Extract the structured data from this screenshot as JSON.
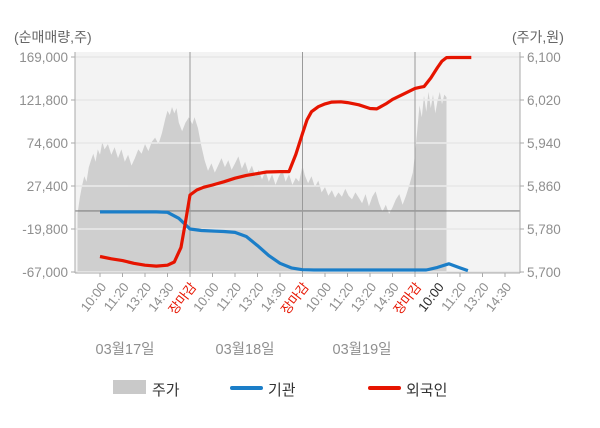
{
  "axis_titles": {
    "left": "(순매매량,주)",
    "right": "(주가,원)"
  },
  "legend": {
    "items": [
      {
        "label": "주가",
        "type": "area",
        "color": "#c9c9c9"
      },
      {
        "label": "기관",
        "type": "line",
        "color": "#1b7ec8"
      },
      {
        "label": "외국인",
        "type": "line",
        "color": "#e61400"
      }
    ]
  },
  "colors": {
    "plot_bg": "#f3f3f3",
    "area_fill": "#cfcfcf",
    "grid": "#e0e0e0",
    "grid_on_area": "#ffffff",
    "zero_line": "#808080",
    "separator": "#9a9a9a",
    "axis_line": "#aaaaaa",
    "tick_label": "#8f8f8f",
    "close_label": "#e61400",
    "current_label": "#2b2b2b",
    "blue_line": "#1b7ec8",
    "red_line": "#e61400"
  },
  "chart_data": {
    "type": "area+line combo (stock price area on right axis, cumulative net-buy lines on left axis)",
    "grid": true,
    "legend_position": "bottom",
    "left_axis": {
      "title": "(순매매량,주)",
      "min": -67000,
      "max": 169000,
      "ticks": [
        169000,
        121800,
        74600,
        27400,
        -19800,
        -67000
      ],
      "tick_labels": [
        "169,000",
        "121,800",
        "74,600",
        "27,400",
        "-19,800",
        "-67,000"
      ]
    },
    "right_axis": {
      "title": "(주가,원)",
      "min": 5700,
      "max": 6100,
      "ticks": [
        6100,
        6020,
        5940,
        5860,
        5780,
        5700
      ],
      "tick_labels": [
        "6,100",
        "6,020",
        "5,940",
        "5,860",
        "5,780",
        "5,700"
      ]
    },
    "x_ticks": [
      {
        "label": "10:00",
        "kind": "time"
      },
      {
        "label": "11:20",
        "kind": "time"
      },
      {
        "label": "13:20",
        "kind": "time"
      },
      {
        "label": "14:30",
        "kind": "time"
      },
      {
        "label": "장마감",
        "kind": "close"
      },
      {
        "label": "10:00",
        "kind": "time"
      },
      {
        "label": "11:20",
        "kind": "time"
      },
      {
        "label": "13:20",
        "kind": "time"
      },
      {
        "label": "14:30",
        "kind": "time"
      },
      {
        "label": "장마감",
        "kind": "close"
      },
      {
        "label": "10:00",
        "kind": "time"
      },
      {
        "label": "11:20",
        "kind": "time"
      },
      {
        "label": "13:20",
        "kind": "time"
      },
      {
        "label": "14:30",
        "kind": "time"
      },
      {
        "label": "장마감",
        "kind": "close"
      },
      {
        "label": "10:00",
        "kind": "current"
      },
      {
        "label": "11:20",
        "kind": "time"
      },
      {
        "label": "13:20",
        "kind": "time"
      },
      {
        "label": "14:30",
        "kind": "time"
      }
    ],
    "day_labels": [
      "03월17일",
      "03월18일",
      "03월19일"
    ],
    "separator_ticks": [
      4,
      9,
      14
    ],
    "series": [
      {
        "name": "주가",
        "type": "area",
        "axis": "right",
        "points": [
          [
            -1.0,
            5808
          ],
          [
            -0.9,
            5838
          ],
          [
            -0.8,
            5860
          ],
          [
            -0.7,
            5878
          ],
          [
            -0.6,
            5868
          ],
          [
            -0.5,
            5895
          ],
          [
            -0.4,
            5908
          ],
          [
            -0.3,
            5920
          ],
          [
            -0.2,
            5905
          ],
          [
            -0.1,
            5928
          ],
          [
            0.0,
            5918
          ],
          [
            0.1,
            5942
          ],
          [
            0.2,
            5928
          ],
          [
            0.35,
            5938
          ],
          [
            0.5,
            5918
          ],
          [
            0.65,
            5932
          ],
          [
            0.8,
            5912
          ],
          [
            0.95,
            5928
          ],
          [
            1.1,
            5905
          ],
          [
            1.25,
            5918
          ],
          [
            1.4,
            5898
          ],
          [
            1.55,
            5912
          ],
          [
            1.7,
            5928
          ],
          [
            1.85,
            5920
          ],
          [
            2.0,
            5938
          ],
          [
            2.15,
            5925
          ],
          [
            2.3,
            5942
          ],
          [
            2.45,
            5950
          ],
          [
            2.6,
            5938
          ],
          [
            2.75,
            5958
          ],
          [
            2.9,
            5985
          ],
          [
            3.0,
            6000
          ],
          [
            3.1,
            5992
          ],
          [
            3.2,
            6007
          ],
          [
            3.3,
            5995
          ],
          [
            3.4,
            6005
          ],
          [
            3.5,
            5978
          ],
          [
            3.65,
            5962
          ],
          [
            3.8,
            5978
          ],
          [
            3.95,
            5988
          ],
          [
            4.1,
            5975
          ],
          [
            4.2,
            5988
          ],
          [
            4.35,
            5968
          ],
          [
            4.5,
            5935
          ],
          [
            4.65,
            5908
          ],
          [
            4.8,
            5888
          ],
          [
            4.95,
            5902
          ],
          [
            5.1,
            5885
          ],
          [
            5.25,
            5898
          ],
          [
            5.4,
            5912
          ],
          [
            5.55,
            5895
          ],
          [
            5.7,
            5908
          ],
          [
            5.85,
            5890
          ],
          [
            6.0,
            5902
          ],
          [
            6.15,
            5915
          ],
          [
            6.3,
            5892
          ],
          [
            6.45,
            5905
          ],
          [
            6.6,
            5885
          ],
          [
            6.75,
            5898
          ],
          [
            6.9,
            5878
          ],
          [
            7.05,
            5890
          ],
          [
            7.2,
            5872
          ],
          [
            7.35,
            5888
          ],
          [
            7.5,
            5868
          ],
          [
            7.65,
            5882
          ],
          [
            7.8,
            5862
          ],
          [
            7.95,
            5878
          ],
          [
            8.1,
            5890
          ],
          [
            8.25,
            5868
          ],
          [
            8.4,
            5882
          ],
          [
            8.55,
            5862
          ],
          [
            8.7,
            5875
          ],
          [
            8.85,
            5868
          ],
          [
            9.0,
            5898
          ],
          [
            9.1,
            5880
          ],
          [
            9.25,
            5865
          ],
          [
            9.4,
            5878
          ],
          [
            9.55,
            5858
          ],
          [
            9.7,
            5870
          ],
          [
            9.85,
            5848
          ],
          [
            10.0,
            5858
          ],
          [
            10.15,
            5842
          ],
          [
            10.3,
            5852
          ],
          [
            10.45,
            5838
          ],
          [
            10.6,
            5848
          ],
          [
            10.75,
            5840
          ],
          [
            10.9,
            5855
          ],
          [
            11.05,
            5842
          ],
          [
            11.2,
            5835
          ],
          [
            11.35,
            5848
          ],
          [
            11.5,
            5838
          ],
          [
            11.65,
            5828
          ],
          [
            11.8,
            5845
          ],
          [
            11.95,
            5822
          ],
          [
            12.1,
            5840
          ],
          [
            12.25,
            5850
          ],
          [
            12.4,
            5828
          ],
          [
            12.55,
            5812
          ],
          [
            12.7,
            5825
          ],
          [
            12.85,
            5808
          ],
          [
            13.0,
            5820
          ],
          [
            13.15,
            5835
          ],
          [
            13.3,
            5845
          ],
          [
            13.45,
            5825
          ],
          [
            13.6,
            5842
          ],
          [
            13.75,
            5862
          ],
          [
            13.9,
            5885
          ],
          [
            14.0,
            5920
          ],
          [
            14.1,
            5965
          ],
          [
            14.2,
            6010
          ],
          [
            14.3,
            5988
          ],
          [
            14.4,
            6028
          ],
          [
            14.5,
            5998
          ],
          [
            14.6,
            6035
          ],
          [
            14.7,
            6005
          ],
          [
            14.8,
            6030
          ],
          [
            14.9,
            5995
          ],
          [
            15.0,
            6018
          ],
          [
            15.1,
            6035
          ],
          [
            15.2,
            6012
          ],
          [
            15.3,
            6030
          ],
          [
            15.4,
            6025
          ]
        ]
      },
      {
        "name": "기관",
        "type": "line",
        "axis": "left",
        "points": [
          [
            0,
            -1000
          ],
          [
            0.5,
            -1000
          ],
          [
            1,
            -1000
          ],
          [
            1.5,
            -1000
          ],
          [
            2,
            -1000
          ],
          [
            2.5,
            -1000
          ],
          [
            3,
            -1500
          ],
          [
            3.5,
            -8000
          ],
          [
            4,
            -19800
          ],
          [
            4.5,
            -21500
          ],
          [
            5,
            -22000
          ],
          [
            5.5,
            -22500
          ],
          [
            6,
            -23500
          ],
          [
            6.5,
            -28000
          ],
          [
            7,
            -38000
          ],
          [
            7.5,
            -49000
          ],
          [
            8,
            -57500
          ],
          [
            8.5,
            -62500
          ],
          [
            9,
            -64500
          ],
          [
            9.5,
            -64800
          ],
          [
            10,
            -64800
          ],
          [
            10.5,
            -64800
          ],
          [
            11,
            -64800
          ],
          [
            11.5,
            -64800
          ],
          [
            12,
            -64800
          ],
          [
            12.5,
            -64800
          ],
          [
            13,
            -64800
          ],
          [
            13.5,
            -64800
          ],
          [
            14,
            -64800
          ],
          [
            14.5,
            -64800
          ],
          [
            15,
            -62000
          ],
          [
            15.5,
            -58000
          ],
          [
            16,
            -62500
          ],
          [
            16.35,
            -65500
          ]
        ]
      },
      {
        "name": "외국인",
        "type": "line",
        "axis": "left",
        "points": [
          [
            0,
            -50000
          ],
          [
            0.5,
            -52500
          ],
          [
            1,
            -54500
          ],
          [
            1.5,
            -57500
          ],
          [
            2,
            -59500
          ],
          [
            2.5,
            -60500
          ],
          [
            3,
            -59500
          ],
          [
            3.3,
            -56000
          ],
          [
            3.6,
            -40000
          ],
          [
            3.8,
            -12000
          ],
          [
            4,
            17500
          ],
          [
            4.3,
            23000
          ],
          [
            4.6,
            26000
          ],
          [
            5,
            28500
          ],
          [
            5.5,
            32000
          ],
          [
            6,
            36000
          ],
          [
            6.5,
            39000
          ],
          [
            7,
            41000
          ],
          [
            7.4,
            42800
          ],
          [
            8,
            43200
          ],
          [
            8.4,
            43200
          ],
          [
            8.7,
            62000
          ],
          [
            9,
            85000
          ],
          [
            9.2,
            100000
          ],
          [
            9.4,
            109000
          ],
          [
            9.7,
            114500
          ],
          [
            10,
            117500
          ],
          [
            10.3,
            119500
          ],
          [
            10.7,
            119800
          ],
          [
            11,
            119000
          ],
          [
            11.5,
            116500
          ],
          [
            12,
            112500
          ],
          [
            12.3,
            112000
          ],
          [
            12.7,
            117500
          ],
          [
            13,
            122500
          ],
          [
            13.5,
            128500
          ],
          [
            14,
            134500
          ],
          [
            14.25,
            135800
          ],
          [
            14.4,
            136500
          ],
          [
            14.7,
            146000
          ],
          [
            15,
            157500
          ],
          [
            15.2,
            164500
          ],
          [
            15.4,
            168300
          ],
          [
            15.6,
            168500
          ],
          [
            16,
            168500
          ],
          [
            16.5,
            168500
          ]
        ]
      }
    ]
  }
}
